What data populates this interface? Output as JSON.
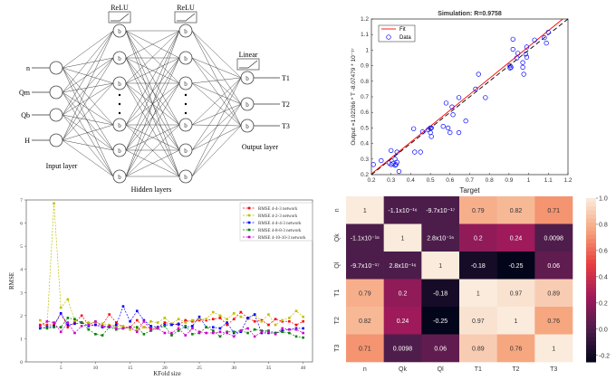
{
  "diagram": {
    "inputs": [
      "n",
      "Qm",
      "Qb",
      "H"
    ],
    "outputs": [
      "T1",
      "T2",
      "T3"
    ],
    "node_label": "b",
    "activation_hidden": "ReLU",
    "activation_output": "Linear",
    "input_layer_label": "Input layer",
    "hidden_layers_label": "Hidden layers",
    "output_layer_label": "Output layer",
    "dots": "•"
  },
  "chart_data": [
    {
      "type": "scatter",
      "title": "Simulation: R=0.9758",
      "xlabel": "Target",
      "ylabel": "Output =1.02266 * T -8.07479 * 10⁻¹⁷",
      "xlim": [
        0.2,
        1.2
      ],
      "ylim": [
        0.2,
        1.2
      ],
      "ticks": [
        "0.2",
        "0.3",
        "0.4",
        "0.5",
        "0.6",
        "0.7",
        "0.8",
        "0.9",
        "1",
        "1.1",
        "1.2"
      ],
      "grid": false,
      "legend": {
        "position": "top-left",
        "entries": [
          "Fit",
          "Data"
        ]
      },
      "fit": {
        "slope": 1.02266,
        "intercept": 0,
        "color": "#ff0000"
      },
      "identity_line": {
        "style": "dashed",
        "color": "#000000"
      },
      "marker_color": "#0000ff",
      "points": [
        [
          0.21,
          0.265
        ],
        [
          0.25,
          0.29
        ],
        [
          0.29,
          0.275
        ],
        [
          0.3,
          0.355
        ],
        [
          0.3,
          0.265
        ],
        [
          0.31,
          0.27
        ],
        [
          0.32,
          0.3
        ],
        [
          0.32,
          0.26
        ],
        [
          0.33,
          0.28
        ],
        [
          0.33,
          0.345
        ],
        [
          0.34,
          0.22
        ],
        [
          0.325,
          0.265
        ],
        [
          0.415,
          0.495
        ],
        [
          0.42,
          0.345
        ],
        [
          0.45,
          0.345
        ],
        [
          0.46,
          0.475
        ],
        [
          0.49,
          0.49
        ],
        [
          0.5,
          0.47
        ],
        [
          0.5,
          0.5
        ],
        [
          0.505,
          0.445
        ],
        [
          0.505,
          0.5
        ],
        [
          0.565,
          0.51
        ],
        [
          0.58,
          0.66
        ],
        [
          0.59,
          0.5
        ],
        [
          0.6,
          0.47
        ],
        [
          0.61,
          0.635
        ],
        [
          0.615,
          0.585
        ],
        [
          0.645,
          0.695
        ],
        [
          0.645,
          0.47
        ],
        [
          0.68,
          0.545
        ],
        [
          0.73,
          0.75
        ],
        [
          0.745,
          0.845
        ],
        [
          0.78,
          0.695
        ],
        [
          0.905,
          0.885
        ],
        [
          0.91,
          0.89
        ],
        [
          0.905,
          0.9
        ],
        [
          0.92,
          1.07
        ],
        [
          0.92,
          1.005
        ],
        [
          0.94,
          0.95
        ],
        [
          0.945,
          0.98
        ],
        [
          0.97,
          0.89
        ],
        [
          0.97,
          0.92
        ],
        [
          0.975,
          0.845
        ],
        [
          0.985,
          0.975
        ],
        [
          0.99,
          1.02
        ],
        [
          0.99,
          0.955
        ],
        [
          1.03,
          1.065
        ],
        [
          1.08,
          1.08
        ],
        [
          1.09,
          1.045
        ],
        [
          1.1,
          1.115
        ]
      ]
    },
    {
      "type": "line",
      "xlabel": "KFold size",
      "ylabel": "RMSE",
      "xlim": [
        0,
        40.7
      ],
      "ylim": [
        0,
        7
      ],
      "xticks": [
        5,
        10,
        15,
        20,
        25,
        30,
        35,
        40
      ],
      "yticks": [
        0,
        1,
        2,
        3,
        4,
        5,
        6,
        7
      ],
      "grid": false,
      "legend": "top-right",
      "x": [
        2,
        3,
        4,
        5,
        6,
        7,
        8,
        9,
        10,
        11,
        12,
        13,
        14,
        15,
        16,
        17,
        18,
        19,
        20,
        21,
        22,
        23,
        24,
        25,
        26,
        27,
        28,
        29,
        30,
        31,
        32,
        33,
        34,
        35,
        36,
        37,
        38,
        39,
        40
      ],
      "series": [
        {
          "name": "RMSE 4-4-3 network",
          "color": "#ff0000",
          "values": [
            1.6,
            1.6,
            1.6,
            2.1,
            1.5,
            1.7,
            2.0,
            1.6,
            1.6,
            1.6,
            2.05,
            1.7,
            1.5,
            1.5,
            1.8,
            1.5,
            1.45,
            1.5,
            1.7,
            1.65,
            1.6,
            1.8,
            1.75,
            1.8,
            1.8,
            1.85,
            1.9,
            1.6,
            1.85,
            2.15,
            1.9,
            1.75,
            1.8,
            1.6,
            1.85,
            1.75,
            1.75,
            1.6,
            1.75
          ]
        },
        {
          "name": "RMSE 4-2-3 network",
          "color": "#bfbf00",
          "values": [
            1.8,
            1.5,
            6.85,
            2.35,
            2.7,
            1.8,
            1.7,
            1.7,
            1.7,
            1.65,
            1.6,
            1.55,
            1.55,
            1.4,
            1.4,
            1.5,
            1.75,
            1.7,
            1.9,
            1.65,
            1.85,
            1.7,
            1.8,
            1.85,
            1.85,
            2.15,
            2.0,
            1.85,
            2.1,
            1.95,
            1.85,
            2.05,
            1.75,
            2.05,
            1.6,
            1.8,
            1.9,
            2.2,
            1.95
          ]
        },
        {
          "name": "RMSE 4-4-4-3 network",
          "color": "#0000ff",
          "values": [
            1.45,
            1.5,
            1.55,
            2.1,
            1.6,
            1.65,
            1.7,
            1.55,
            1.6,
            1.5,
            1.5,
            1.6,
            2.4,
            1.75,
            2.2,
            1.8,
            1.55,
            1.5,
            1.6,
            1.6,
            1.65,
            1.5,
            1.55,
            1.95,
            1.5,
            1.5,
            1.45,
            1.7,
            1.25,
            1.3,
            1.9,
            2.05,
            1.25,
            1.25,
            1.25,
            1.35,
            1.4,
            1.45,
            1.45
          ]
        },
        {
          "name": "RMSE 4-8-8-3 network",
          "color": "#008000",
          "values": [
            1.5,
            1.45,
            1.5,
            1.5,
            1.9,
            1.85,
            1.7,
            1.4,
            1.2,
            1.15,
            1.5,
            1.4,
            1.45,
            1.5,
            1.5,
            1.2,
            1.35,
            1.45,
            1.55,
            1.15,
            1.35,
            1.55,
            1.2,
            1.25,
            1.5,
            1.35,
            1.1,
            1.3,
            1.3,
            1.35,
            1.25,
            1.4,
            1.35,
            1.35,
            1.25,
            1.3,
            1.25,
            1.1,
            1.05
          ]
        },
        {
          "name": "RMSE 4-10-10-3 network",
          "color": "#cc00cc",
          "values": [
            1.55,
            1.75,
            1.7,
            1.3,
            1.7,
            1.25,
            1.55,
            1.6,
            1.75,
            1.55,
            1.55,
            1.45,
            1.45,
            1.5,
            1.3,
            1.75,
            1.4,
            1.45,
            1.25,
            1.25,
            1.45,
            1.15,
            1.45,
            1.3,
            1.25,
            1.25,
            1.3,
            1.25,
            1.1,
            1.35,
            1.45,
            1.1,
            1.3,
            1.3,
            1.2,
            1.45,
            1.4,
            1.4,
            1.25
          ]
        }
      ]
    },
    {
      "type": "heatmap",
      "labels": [
        "n",
        "Qk",
        "Ql",
        "T1",
        "T2",
        "T3"
      ],
      "values": [
        [
          1,
          -1.1e-16,
          -9.7e-17,
          0.79,
          0.82,
          0.71
        ],
        [
          -1.1e-16,
          1,
          2.8e-16,
          0.2,
          0.24,
          0.0098
        ],
        [
          -9.7e-17,
          2.8e-16,
          1,
          -0.18,
          -0.25,
          0.06
        ],
        [
          0.79,
          0.2,
          -0.18,
          1,
          0.97,
          0.89
        ],
        [
          0.82,
          0.24,
          -0.25,
          0.97,
          1,
          0.76
        ],
        [
          0.71,
          0.0098,
          0.06,
          0.89,
          0.76,
          1
        ]
      ],
      "annotations": [
        [
          "1",
          "-1.1x10⁻¹⁶",
          "-9.7x10⁻¹⁷",
          "0.79",
          "0.82",
          "0.71"
        ],
        [
          "-1.1x10⁻¹⁶",
          "1",
          "2.8x10⁻¹⁶",
          "0.2",
          "0.24",
          "0.0098"
        ],
        [
          "-9.7x10⁻¹⁷",
          "2.8x10⁻¹⁶",
          "1",
          "-0.18",
          "-0.25",
          "0.06"
        ],
        [
          "0.79",
          "0.2",
          "-0.18",
          "1",
          "0.97",
          "0.89"
        ],
        [
          "0.82",
          "0.24",
          "-0.25",
          "0.97",
          "1",
          "0.76"
        ],
        [
          "0.71",
          "0.0098",
          "0.06",
          "0.89",
          "0.76",
          "1"
        ]
      ],
      "colorbar": {
        "range": [
          -0.25,
          1.0
        ],
        "ticks": [
          "1.0",
          "0.8",
          "0.6",
          "0.4",
          "0.2",
          "0.0",
          "-0.2"
        ],
        "colormap": "rocket"
      }
    }
  ]
}
